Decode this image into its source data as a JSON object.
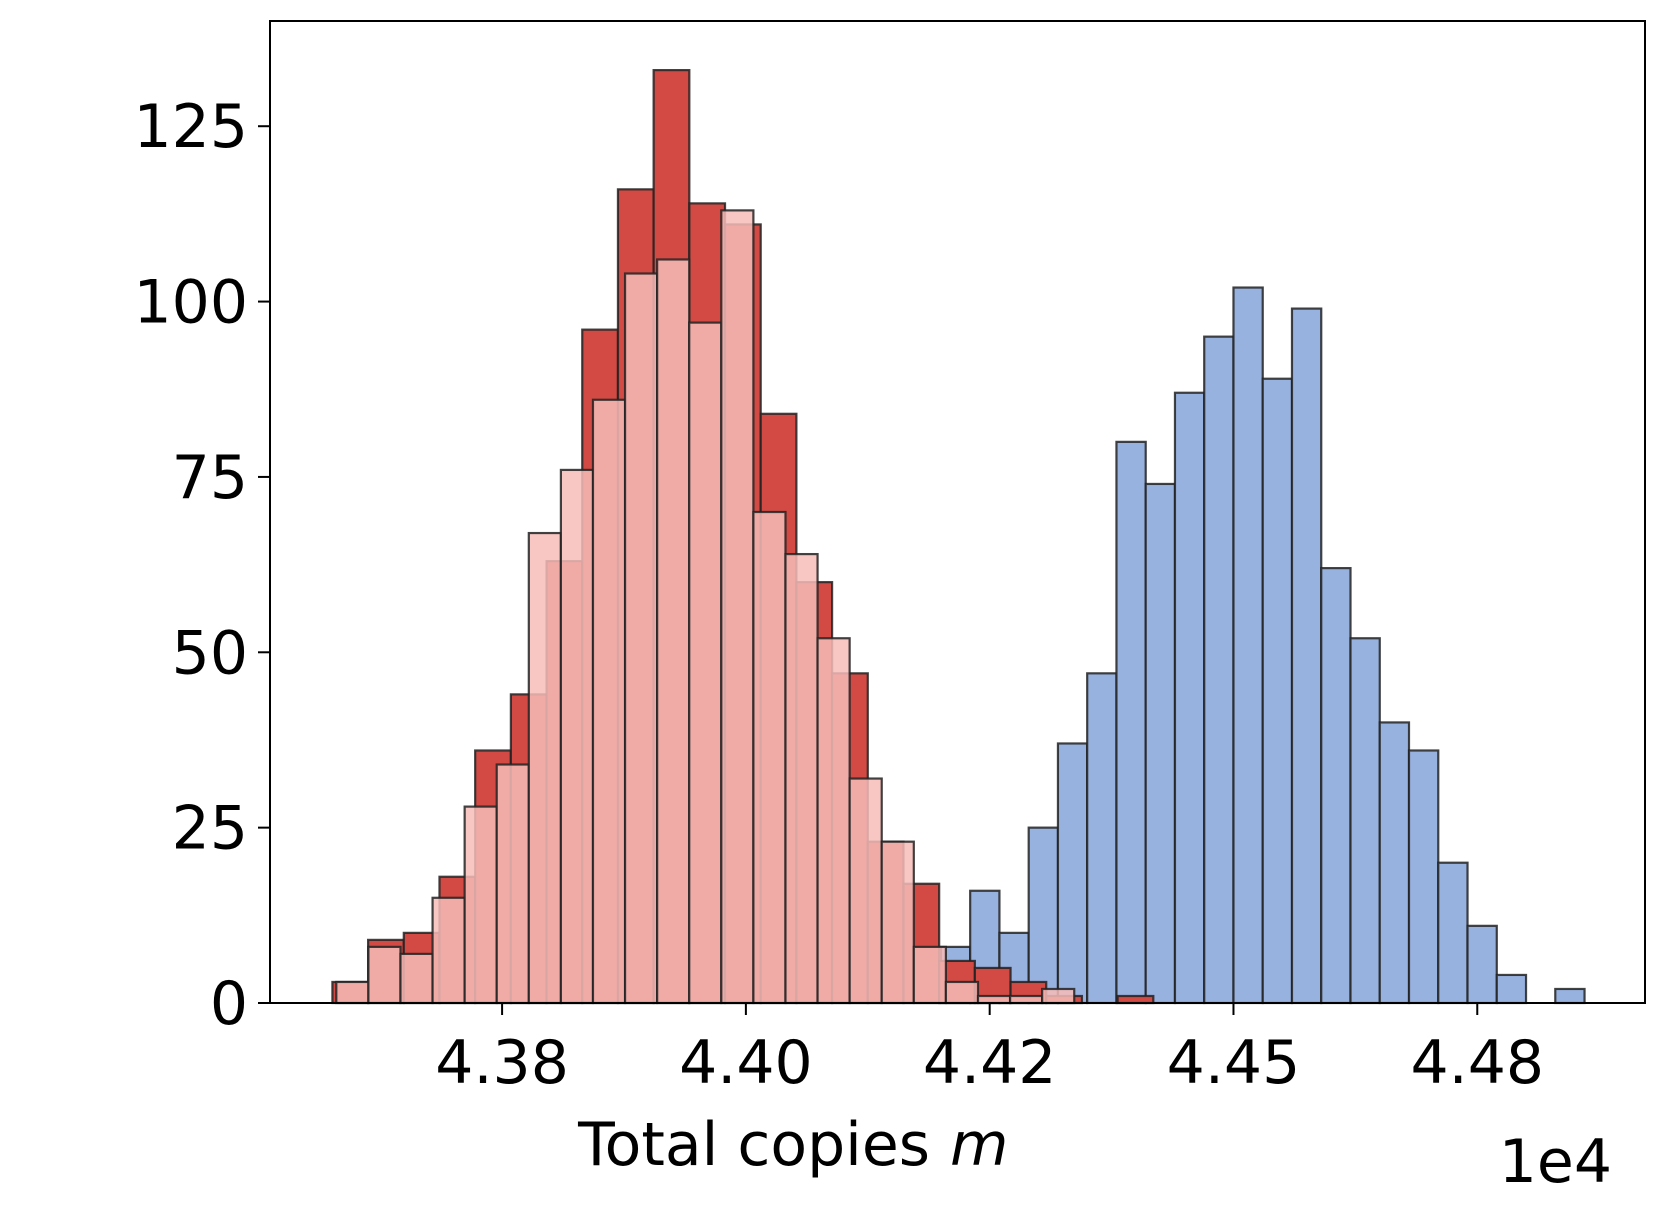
{
  "chart_data": {
    "type": "histogram",
    "xlabel": "Total copies",
    "xlabel_symbol": "m",
    "x_offset_label": "1e4",
    "xlim": [
      43512,
      44922
    ],
    "ylim": [
      0,
      140
    ],
    "xticks": [
      {
        "value": 43750,
        "label": "4.38"
      },
      {
        "value": 44000,
        "label": "4.40"
      },
      {
        "value": 44250,
        "label": "4.42"
      },
      {
        "value": 44500,
        "label": "4.45"
      },
      {
        "value": 44750,
        "label": "4.48"
      }
    ],
    "yticks": [
      0,
      25,
      50,
      75,
      100,
      125
    ],
    "grid": false,
    "series": [
      {
        "color": "#98b2e0",
        "opacity": 1,
        "bins": [
          44200,
          44230,
          44260,
          44290,
          44320,
          44350,
          44380,
          44410,
          44440,
          44470,
          44500,
          44530,
          44560,
          44590,
          44620,
          44650,
          44680,
          44710,
          44740,
          44770,
          44800,
          44830,
          44860
        ],
        "values": [
          8,
          16,
          10,
          25,
          37,
          47,
          80,
          74,
          87,
          95,
          102,
          89,
          99,
          62,
          52,
          40,
          36,
          20,
          11,
          4,
          0,
          2
        ]
      },
      {
        "color": "#d24a43",
        "opacity": 1,
        "bins": [
          43576.0,
          43612.6,
          43649.2,
          43685.8,
          43722.4,
          43759.0,
          43795.6,
          43832.2,
          43868.8,
          43905.4,
          43942.0,
          43978.6,
          44015.2,
          44051.8,
          44088.4,
          44125.0,
          44161.6,
          44198.2,
          44234.8,
          44271.4,
          44308.0,
          44344.6,
          44381.2,
          44417.8
        ],
        "values": [
          3,
          9,
          10,
          18,
          36,
          44,
          63,
          96,
          116,
          133,
          114,
          111,
          84,
          60,
          47,
          23,
          17,
          6,
          5,
          3,
          1,
          0,
          1
        ]
      },
      {
        "color": "#f7bcb8",
        "opacity": 0.85,
        "bins": [
          43580.0,
          43612.9,
          43645.8,
          43678.7,
          43711.6,
          43744.5,
          43777.4,
          43810.3,
          43843.2,
          43876.1,
          43909.0,
          43941.9,
          43974.8,
          44007.7,
          44040.6,
          44073.5,
          44106.4,
          44139.3,
          44172.2,
          44205.1,
          44238.0,
          44270.9,
          44303.8,
          44336.7
        ],
        "values": [
          3,
          8,
          7,
          15,
          28,
          34,
          67,
          76,
          86,
          104,
          106,
          97,
          113,
          70,
          64,
          52,
          32,
          23,
          8,
          3,
          1,
          1,
          2
        ]
      }
    ]
  }
}
